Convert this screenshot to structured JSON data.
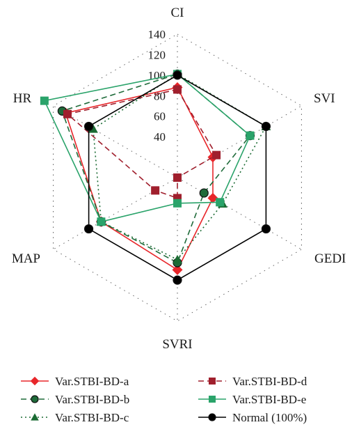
{
  "chart_data": {
    "type": "radar",
    "axes": [
      "CI",
      "SVI",
      "GEDI",
      "SVRI",
      "MAP",
      "HR"
    ],
    "rlim": [
      0,
      140
    ],
    "ticks": [
      40,
      60,
      80,
      100,
      120,
      140
    ],
    "grid": true,
    "legend_position": "bottom",
    "series": [
      {
        "name": "Var.STBI-BD-a",
        "color": "#e8262a",
        "marker": "diamond",
        "line": "solid",
        "values": [
          88,
          40,
          40,
          90,
          86,
          126
        ]
      },
      {
        "name": "Var.STBI-BD-b",
        "color": "#1f6b3a",
        "marker": "circle",
        "line": "dashed",
        "values": [
          101,
          82,
          30,
          83,
          86,
          130
        ]
      },
      {
        "name": "Var.STBI-BD-c",
        "color": "#1b6b33",
        "marker": "triangle",
        "line": "dotted",
        "values": [
          101,
          100,
          51,
          80,
          86,
          95
        ]
      },
      {
        "name": "Var.STBI-BD-d",
        "color": "#a01f2d",
        "marker": "square",
        "line": "dashed",
        "values": [
          86,
          44,
          0,
          20,
          25,
          124
        ]
      },
      {
        "name": "Var.STBI-BD-e",
        "color": "#2aa36a",
        "marker": "square",
        "line": "solid",
        "values": [
          101,
          82,
          48,
          25,
          86,
          150
        ]
      },
      {
        "name": "Normal (100%)",
        "color": "#000000",
        "marker": "circle",
        "line": "solid",
        "values": [
          100,
          100,
          100,
          100,
          100,
          100
        ]
      }
    ]
  }
}
